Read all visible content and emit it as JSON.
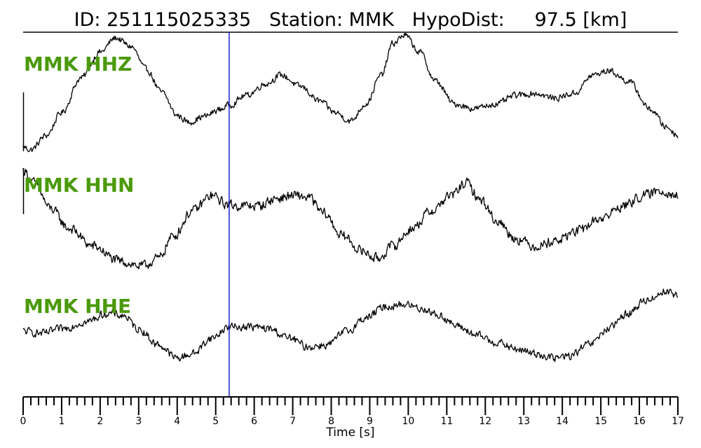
{
  "title": {
    "id_label": "ID:",
    "id_value": "251115025335",
    "station_label": "Station:",
    "station_value": "MMK",
    "dist_label": "HypoDist:",
    "dist_value": "97.5",
    "dist_unit": "[km]"
  },
  "chart_data": {
    "type": "line",
    "xlabel": "Time [s]",
    "xlim": [
      0,
      17
    ],
    "x_ticks_major": [
      0,
      1,
      2,
      3,
      4,
      5,
      6,
      7,
      8,
      9,
      10,
      11,
      12,
      13,
      14,
      15,
      16,
      17
    ],
    "x_tick_minor_step": 0.2,
    "pick_marker": {
      "time": 5.35,
      "color": "#1f1fd0"
    },
    "series": [
      {
        "name": "MMK HHZ",
        "keypoints": [
          [
            0,
            -0.95
          ],
          [
            0.2,
            -1.0
          ],
          [
            0.6,
            -0.75
          ],
          [
            1,
            -0.35
          ],
          [
            1.5,
            0.25
          ],
          [
            2,
            0.7
          ],
          [
            2.4,
            0.95
          ],
          [
            2.8,
            0.8
          ],
          [
            3.2,
            0.4
          ],
          [
            3.6,
            0.0
          ],
          [
            4,
            -0.4
          ],
          [
            4.3,
            -0.52
          ],
          [
            4.7,
            -0.42
          ],
          [
            5.1,
            -0.3
          ],
          [
            5.35,
            -0.22
          ],
          [
            5.8,
            -0.05
          ],
          [
            6.3,
            0.15
          ],
          [
            6.7,
            0.3
          ],
          [
            7.2,
            0.1
          ],
          [
            7.7,
            -0.15
          ],
          [
            8.1,
            -0.35
          ],
          [
            8.5,
            -0.5
          ],
          [
            8.9,
            -0.2
          ],
          [
            9.3,
            0.3
          ],
          [
            9.6,
            0.85
          ],
          [
            9.9,
            1.0
          ],
          [
            10.3,
            0.7
          ],
          [
            10.7,
            0.2
          ],
          [
            11.2,
            -0.2
          ],
          [
            11.7,
            -0.28
          ],
          [
            12.3,
            -0.2
          ],
          [
            12.8,
            -0.05
          ],
          [
            13.3,
            -0.02
          ],
          [
            13.8,
            -0.1
          ],
          [
            14.3,
            -0.02
          ],
          [
            14.8,
            0.3
          ],
          [
            15.2,
            0.38
          ],
          [
            15.7,
            0.2
          ],
          [
            16.3,
            -0.3
          ],
          [
            16.7,
            -0.6
          ],
          [
            17,
            -0.75
          ]
        ],
        "noise": 0.05
      },
      {
        "name": "MMK HHN",
        "keypoints": [
          [
            0,
            0.95
          ],
          [
            0.3,
            0.7
          ],
          [
            0.7,
            0.2
          ],
          [
            1.2,
            -0.2
          ],
          [
            1.8,
            -0.55
          ],
          [
            2.5,
            -0.85
          ],
          [
            3.1,
            -0.95
          ],
          [
            3.5,
            -0.8
          ],
          [
            3.9,
            -0.35
          ],
          [
            4.4,
            0.15
          ],
          [
            4.9,
            0.45
          ],
          [
            5.3,
            0.28
          ],
          [
            5.6,
            0.25
          ],
          [
            6.1,
            0.25
          ],
          [
            6.6,
            0.4
          ],
          [
            7,
            0.45
          ],
          [
            7.4,
            0.42
          ],
          [
            7.8,
            0.1
          ],
          [
            8.3,
            -0.35
          ],
          [
            8.8,
            -0.65
          ],
          [
            9.2,
            -0.8
          ],
          [
            9.6,
            -0.55
          ],
          [
            10.1,
            -0.2
          ],
          [
            10.6,
            0.15
          ],
          [
            11.1,
            0.45
          ],
          [
            11.5,
            0.7
          ],
          [
            11.9,
            0.35
          ],
          [
            12.3,
            -0.05
          ],
          [
            12.8,
            -0.4
          ],
          [
            13.3,
            -0.55
          ],
          [
            13.8,
            -0.45
          ],
          [
            14.4,
            -0.25
          ],
          [
            15,
            0.0
          ],
          [
            15.6,
            0.25
          ],
          [
            16.1,
            0.45
          ],
          [
            16.6,
            0.55
          ],
          [
            17,
            0.45
          ]
        ],
        "noise": 0.09
      },
      {
        "name": "MMK HHE",
        "keypoints": [
          [
            0,
            -0.05
          ],
          [
            0.5,
            -0.1
          ],
          [
            1,
            0.0
          ],
          [
            1.6,
            0.15
          ],
          [
            2.2,
            0.35
          ],
          [
            2.6,
            0.3
          ],
          [
            3,
            0.0
          ],
          [
            3.5,
            -0.35
          ],
          [
            4,
            -0.65
          ],
          [
            4.4,
            -0.55
          ],
          [
            4.9,
            -0.2
          ],
          [
            5.35,
            0.05
          ],
          [
            5.9,
            0.05
          ],
          [
            6.4,
            0.0
          ],
          [
            6.9,
            -0.2
          ],
          [
            7.4,
            -0.4
          ],
          [
            7.9,
            -0.35
          ],
          [
            8.4,
            -0.05
          ],
          [
            8.9,
            0.25
          ],
          [
            9.4,
            0.5
          ],
          [
            9.9,
            0.55
          ],
          [
            10.4,
            0.45
          ],
          [
            10.8,
            0.3
          ],
          [
            11.3,
            0.05
          ],
          [
            11.8,
            -0.15
          ],
          [
            12.3,
            -0.3
          ],
          [
            12.8,
            -0.45
          ],
          [
            13.3,
            -0.55
          ],
          [
            13.8,
            -0.65
          ],
          [
            14.2,
            -0.6
          ],
          [
            14.7,
            -0.35
          ],
          [
            15.2,
            0.0
          ],
          [
            15.7,
            0.35
          ],
          [
            16.2,
            0.65
          ],
          [
            16.7,
            0.85
          ],
          [
            17,
            0.75
          ]
        ],
        "noise": 0.08
      }
    ]
  }
}
